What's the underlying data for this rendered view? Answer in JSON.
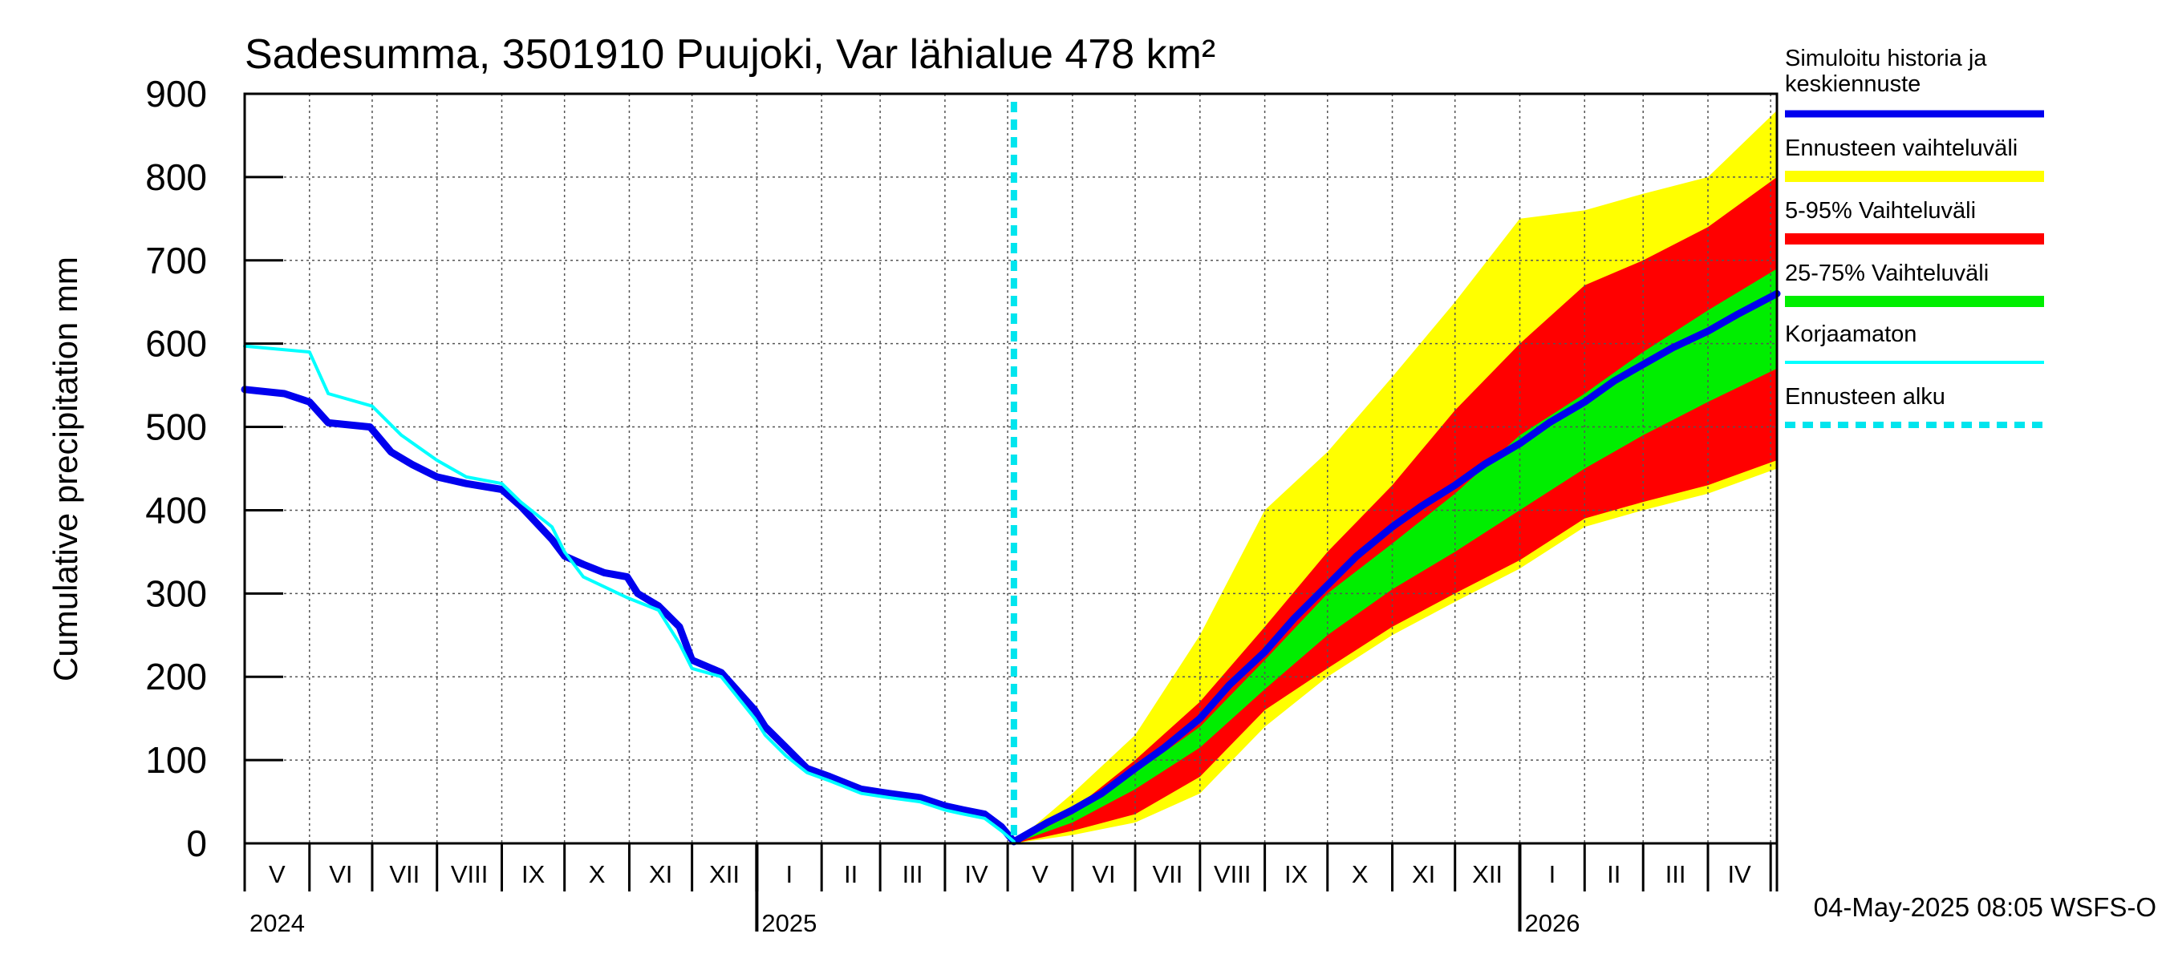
{
  "chart_data": {
    "type": "area",
    "title": "Sadesumma, 3501910 Puujoki, Var lähialue 478 km²",
    "ylabel": "Cumulative precipitation   mm",
    "xlabel": "",
    "ylim": [
      0,
      900
    ],
    "yticks": [
      "0",
      "100",
      "200",
      "300",
      "400",
      "500",
      "600",
      "700",
      "800",
      "900"
    ],
    "xlim": [
      "2024-05-01",
      "2026-05-04"
    ],
    "grid": true,
    "legend_placement": "right",
    "month_labels": [
      "V",
      "VI",
      "VII",
      "VIII",
      "IX",
      "X",
      "XI",
      "XII",
      "I",
      "II",
      "III",
      "IV",
      "V",
      "VI",
      "VII",
      "VIII",
      "IX",
      "X",
      "XI",
      "XII",
      "I",
      "II",
      "III",
      "IV"
    ],
    "year_labels": [
      "2024",
      "2025",
      "2026"
    ],
    "forecast_start": "2025-05-04",
    "footer": "04-May-2025 08:05 WSFS-O",
    "legend": [
      {
        "label": "Simuloitu historia ja keskiennuste",
        "color": "#0000ee",
        "style": "thick"
      },
      {
        "label": "Ennusteen vaihteluväli",
        "color": "#ffff00",
        "style": "band"
      },
      {
        "label": "5-95% Vaihteluväli",
        "color": "#ff0000",
        "style": "band"
      },
      {
        "label": "25-75% Vaihteluväli",
        "color": "#00ee00",
        "style": "band"
      },
      {
        "label": "Korjaamaton",
        "color": "#00ffff",
        "style": "thin"
      },
      {
        "label": "Ennusteen alku",
        "color": "#00e5ee",
        "style": "dashed"
      }
    ],
    "series": [
      {
        "name": "Simuloitu historia ja keskiennuste",
        "color": "#0000ee",
        "x": [
          "2024-05-01",
          "2024-05-20",
          "2024-06-01",
          "2024-06-10",
          "2024-06-30",
          "2024-07-10",
          "2024-07-20",
          "2024-08-01",
          "2024-08-15",
          "2024-09-01",
          "2024-09-10",
          "2024-09-25",
          "2024-10-01",
          "2024-10-10",
          "2024-10-20",
          "2024-10-31",
          "2024-11-05",
          "2024-11-15",
          "2024-11-25",
          "2024-12-01",
          "2024-12-15",
          "2024-12-31",
          "2025-01-05",
          "2025-01-15",
          "2025-01-25",
          "2025-02-05",
          "2025-02-20",
          "2025-03-05",
          "2025-03-20",
          "2025-04-01",
          "2025-04-10",
          "2025-04-20",
          "2025-04-28",
          "2025-05-04",
          "2025-05-20",
          "2025-06-01",
          "2025-06-15",
          "2025-07-01",
          "2025-07-15",
          "2025-08-01",
          "2025-08-15",
          "2025-09-01",
          "2025-09-15",
          "2025-10-01",
          "2025-10-15",
          "2025-11-01",
          "2025-11-15",
          "2025-12-01",
          "2025-12-15",
          "2026-01-01",
          "2026-01-15",
          "2026-02-01",
          "2026-02-15",
          "2026-03-01",
          "2026-03-15",
          "2026-04-01",
          "2026-04-15",
          "2026-05-04"
        ],
        "y": [
          545,
          540,
          530,
          505,
          500,
          470,
          455,
          440,
          432,
          425,
          405,
          365,
          345,
          335,
          325,
          320,
          300,
          285,
          260,
          220,
          205,
          160,
          140,
          115,
          90,
          80,
          65,
          60,
          55,
          45,
          40,
          35,
          20,
          2,
          25,
          40,
          60,
          90,
          115,
          150,
          190,
          230,
          270,
          310,
          345,
          380,
          405,
          430,
          455,
          480,
          505,
          530,
          555,
          575,
          595,
          615,
          635,
          660
        ]
      },
      {
        "name": "Korjaamaton",
        "color": "#00ffff",
        "x": [
          "2024-05-01",
          "2024-06-01",
          "2024-06-10",
          "2024-07-01",
          "2024-07-15",
          "2024-08-01",
          "2024-08-15",
          "2024-09-01",
          "2024-09-10",
          "2024-09-25",
          "2024-10-01",
          "2024-10-10",
          "2024-10-31",
          "2024-11-15",
          "2024-11-25",
          "2024-12-01",
          "2024-12-15",
          "2024-12-31",
          "2025-01-05",
          "2025-01-15",
          "2025-01-25",
          "2025-02-05",
          "2025-02-20",
          "2025-03-05",
          "2025-03-20",
          "2025-04-01",
          "2025-04-10",
          "2025-04-20",
          "2025-04-28",
          "2025-05-04"
        ],
        "y": [
          597,
          590,
          540,
          525,
          490,
          460,
          440,
          432,
          410,
          380,
          350,
          320,
          295,
          280,
          240,
          210,
          200,
          150,
          130,
          105,
          85,
          75,
          60,
          55,
          50,
          40,
          35,
          30,
          15,
          2
        ]
      }
    ],
    "bands": [
      {
        "name": "Ennusteen vaihteluväli",
        "color": "#ffff00",
        "x": [
          "2025-05-04",
          "2025-06-01",
          "2025-07-01",
          "2025-08-01",
          "2025-09-01",
          "2025-10-01",
          "2025-11-01",
          "2025-12-01",
          "2026-01-01",
          "2026-02-01",
          "2026-03-01",
          "2026-04-01",
          "2026-05-04"
        ],
        "lower": [
          0,
          10,
          25,
          60,
          140,
          200,
          250,
          290,
          330,
          380,
          400,
          420,
          450
        ],
        "upper": [
          0,
          60,
          130,
          250,
          400,
          470,
          560,
          650,
          750,
          760,
          780,
          800,
          880
        ]
      },
      {
        "name": "5-95% Vaihteluväli",
        "color": "#ff0000",
        "x": [
          "2025-05-04",
          "2025-06-01",
          "2025-07-01",
          "2025-08-01",
          "2025-09-01",
          "2025-10-01",
          "2025-11-01",
          "2025-12-01",
          "2026-01-01",
          "2026-02-01",
          "2026-03-01",
          "2026-04-01",
          "2026-05-04"
        ],
        "lower": [
          0,
          15,
          35,
          80,
          160,
          210,
          260,
          300,
          340,
          390,
          410,
          430,
          460
        ],
        "upper": [
          0,
          40,
          100,
          170,
          260,
          350,
          430,
          520,
          600,
          670,
          700,
          740,
          800
        ]
      },
      {
        "name": "25-75% Vaihteluväli",
        "color": "#00ee00",
        "x": [
          "2025-05-04",
          "2025-06-01",
          "2025-07-01",
          "2025-08-01",
          "2025-09-01",
          "2025-10-01",
          "2025-11-01",
          "2025-12-01",
          "2026-01-01",
          "2026-02-01",
          "2026-03-01",
          "2026-04-01",
          "2026-05-04"
        ],
        "lower": [
          0,
          25,
          65,
          115,
          185,
          250,
          305,
          350,
          400,
          450,
          490,
          530,
          570
        ],
        "upper": [
          0,
          35,
          85,
          140,
          220,
          300,
          360,
          420,
          490,
          540,
          590,
          640,
          690
        ]
      }
    ]
  }
}
